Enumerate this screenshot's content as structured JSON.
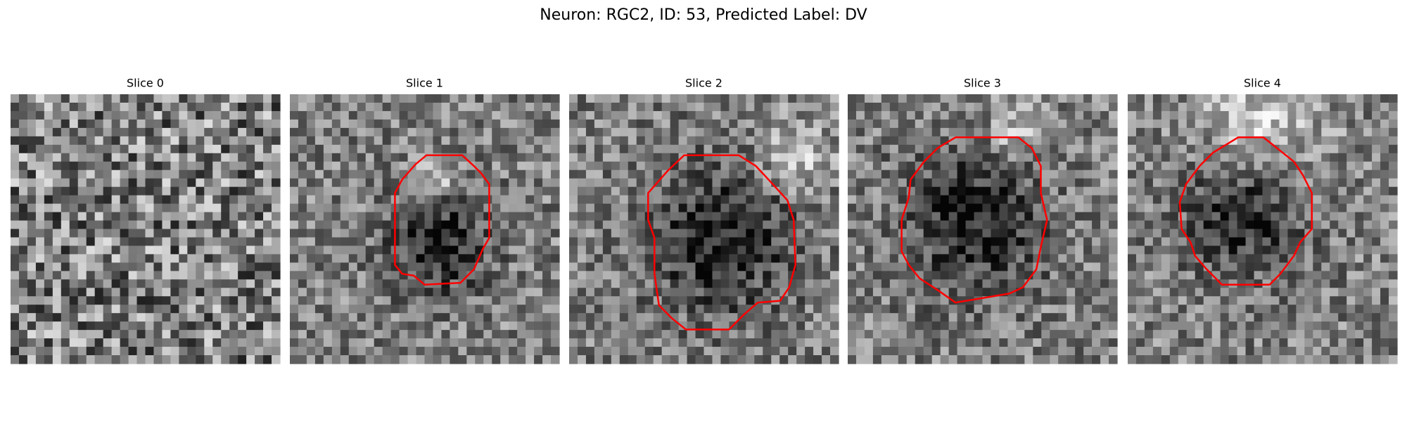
{
  "title": "Neuron: RGC2, ID: 53, Predicted Label: DV",
  "panels": [
    {
      "title": "Slice 0"
    },
    {
      "title": "Slice 1"
    },
    {
      "title": "Slice 2"
    },
    {
      "title": "Slice 3"
    },
    {
      "title": "Slice 4"
    }
  ]
}
